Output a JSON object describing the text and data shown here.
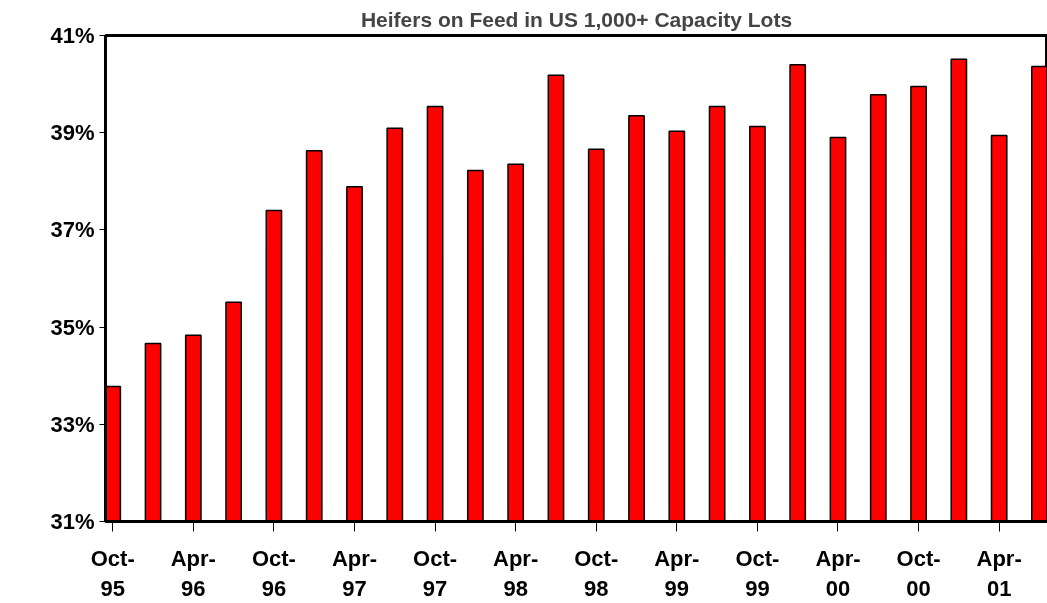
{
  "chart_data": {
    "type": "bar",
    "title": "Heifers on Feed in US 1,000+ Capacity Lots",
    "categories": [
      "Oct-95",
      null,
      "Apr-96",
      null,
      "Oct-96",
      null,
      "Apr-97",
      null,
      "Oct-97",
      null,
      "Apr-98",
      null,
      "Oct-98",
      null,
      "Apr-99",
      null,
      "Oct-99",
      null,
      "Apr-00",
      null,
      "Oct-00",
      null,
      "Apr-01",
      null
    ],
    "values": [
      33.78,
      34.66,
      34.83,
      35.51,
      37.4,
      38.63,
      37.89,
      39.09,
      39.54,
      38.22,
      38.35,
      40.18,
      38.66,
      39.35,
      39.03,
      39.54,
      39.13,
      40.4,
      38.9,
      39.78,
      39.95,
      40.51,
      38.94,
      40.36
    ],
    "color": "#ff0000",
    "ylim": [
      31,
      41
    ],
    "yticks": [
      {
        "value": 31,
        "label": "31%"
      },
      {
        "value": 33,
        "label": "33%"
      },
      {
        "value": 35,
        "label": "35%"
      },
      {
        "value": 37,
        "label": "37%"
      },
      {
        "value": 39,
        "label": "39%"
      },
      {
        "value": 41,
        "label": "41%"
      }
    ],
    "grid": false
  }
}
